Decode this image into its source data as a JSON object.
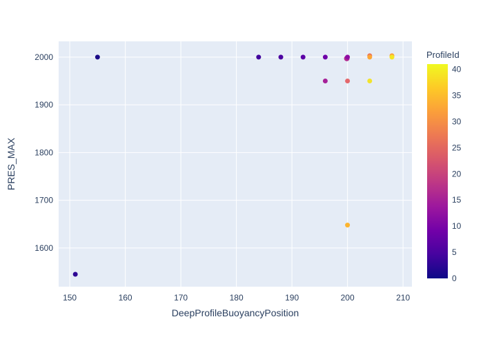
{
  "figure": {
    "background": "#ffffff",
    "plot_background": "#e5ecf6",
    "grid_color": "#ffffff",
    "text_color": "#2a3f5f"
  },
  "chart_data": {
    "type": "scatter",
    "title": "",
    "xlabel": "DeepProfileBuoyancyPosition",
    "ylabel": "PRES_MAX",
    "x_ticks": [
      150,
      160,
      170,
      180,
      190,
      200,
      210
    ],
    "y_ticks": [
      1600,
      1700,
      1800,
      1900,
      2000
    ],
    "xlim": [
      148.0,
      211.6
    ],
    "ylim": [
      1519,
      2033
    ],
    "grid": true,
    "legend_position": "right-colorbar",
    "marker_size_px": 7,
    "points": [
      {
        "x": 151,
        "y": 1545,
        "profile_id": 2,
        "color": "#2d0594"
      },
      {
        "x": 155,
        "y": 2000,
        "profile_id": 1,
        "color": "#1c0c88"
      },
      {
        "x": 184,
        "y": 2000,
        "profile_id": 4,
        "color": "#41049d"
      },
      {
        "x": 188,
        "y": 2000,
        "profile_id": 5,
        "color": "#4c02a1"
      },
      {
        "x": 192,
        "y": 2000,
        "profile_id": 6,
        "color": "#5c01a6"
      },
      {
        "x": 196,
        "y": 2000,
        "profile_id": 8,
        "color": "#6e00a8"
      },
      {
        "x": 196,
        "y": 1950,
        "profile_id": 15,
        "color": "#a62098"
      },
      {
        "x": 200,
        "y": 2000,
        "profile_id": 16,
        "color": "#b12a90",
        "dx": -1,
        "dy": 2,
        "r": 4
      },
      {
        "x": 200,
        "y": 2000,
        "profile_id": 12,
        "color": "#8f0da4"
      },
      {
        "x": 200,
        "y": 1950,
        "profile_id": 25,
        "color": "#e4686c"
      },
      {
        "x": 200,
        "y": 1648,
        "profile_id": 35,
        "color": "#fcb42f"
      },
      {
        "x": 204,
        "y": 2000,
        "profile_id": 28,
        "color": "#ea7457",
        "dy": -2
      },
      {
        "x": 204,
        "y": 2000,
        "profile_id": 33,
        "color": "#fca636"
      },
      {
        "x": 204,
        "y": 1950,
        "profile_id": 39,
        "color": "#f2e32c"
      },
      {
        "x": 208,
        "y": 2000,
        "profile_id": 37,
        "color": "#fb9f3a",
        "dy": -2
      },
      {
        "x": 208,
        "y": 2000,
        "profile_id": 41,
        "color": "#f4e625"
      }
    ],
    "colorbar": {
      "title": "ProfileId",
      "ticks": [
        0,
        5,
        10,
        15,
        20,
        25,
        30,
        35,
        40
      ],
      "range": [
        0,
        41
      ],
      "colorscale": [
        [
          0.0,
          "#0d0887"
        ],
        [
          0.1111,
          "#46039f"
        ],
        [
          0.2222,
          "#7201a8"
        ],
        [
          0.3333,
          "#9c179e"
        ],
        [
          0.4444,
          "#bd3786"
        ],
        [
          0.5556,
          "#d8576b"
        ],
        [
          0.6667,
          "#ed7953"
        ],
        [
          0.7778,
          "#fb9f3a"
        ],
        [
          0.8889,
          "#fdca26"
        ],
        [
          1.0,
          "#f0f921"
        ]
      ]
    }
  }
}
